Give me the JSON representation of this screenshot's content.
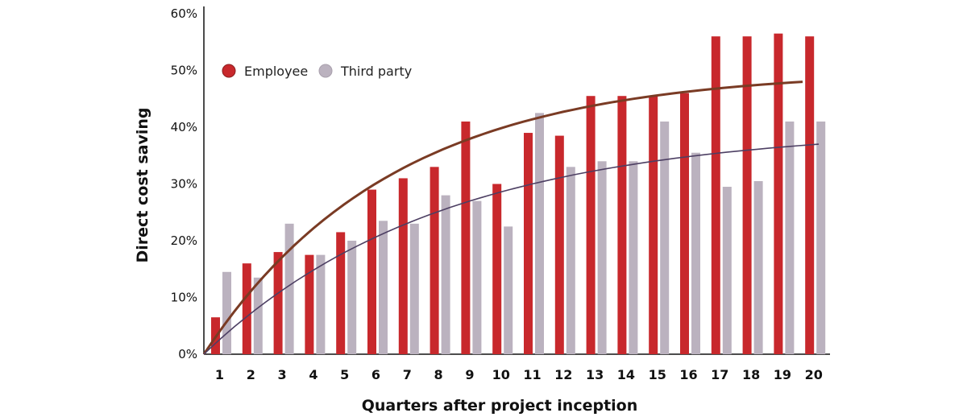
{
  "chart_data": {
    "type": "bar",
    "title": "",
    "xlabel": "Quarters after project inception",
    "ylabel": "Direct cost saving",
    "ylim": [
      0,
      60
    ],
    "yticks": [
      "0%",
      "10%",
      "20%",
      "30%",
      "40%",
      "50%",
      "60%"
    ],
    "categories": [
      "1",
      "2",
      "3",
      "4",
      "5",
      "6",
      "7",
      "8",
      "9",
      "10",
      "11",
      "12",
      "13",
      "14",
      "15",
      "16",
      "17",
      "18",
      "19",
      "20"
    ],
    "series": [
      {
        "name": "Employee",
        "color": "#c8282c",
        "values": [
          6.5,
          16,
          18,
          17.5,
          21.5,
          29,
          31,
          33,
          41,
          30,
          39,
          38.5,
          45.5,
          45.5,
          45.5,
          46,
          56,
          56,
          56.5,
          56
        ]
      },
      {
        "name": "Third party",
        "color": "#bbb2bf",
        "values": [
          14.5,
          13.5,
          23,
          17.5,
          20,
          23.5,
          23,
          28,
          27,
          22.5,
          42.5,
          33,
          34,
          34,
          41,
          35.5,
          29.5,
          30.5,
          41,
          41
        ]
      }
    ],
    "trendlines": [
      {
        "series": "Employee",
        "color": "#7a3b24",
        "values": [
          0,
          48
        ]
      },
      {
        "series": "Third party",
        "color": "#4d3f63",
        "values": [
          0,
          37
        ]
      }
    ],
    "legend_position": "top-left",
    "grid": false
  }
}
